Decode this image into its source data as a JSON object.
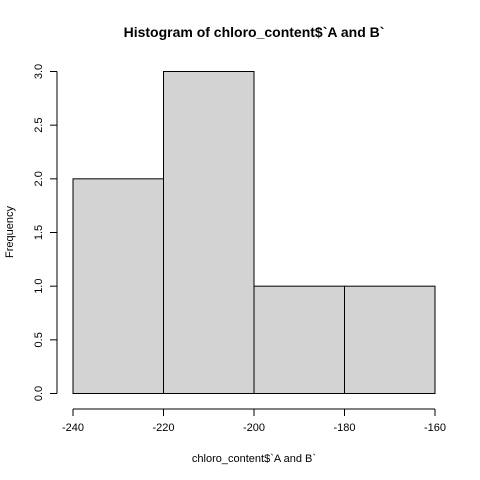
{
  "chart_data": {
    "type": "bar",
    "title": "Histogram of chloro_content$`A and B`",
    "xlabel": "chloro_content$`A and B`",
    "ylabel": "Frequency",
    "bins": [
      {
        "from": -240,
        "to": -220,
        "count": 2
      },
      {
        "from": -220,
        "to": -200,
        "count": 3
      },
      {
        "from": -200,
        "to": -180,
        "count": 1
      },
      {
        "from": -180,
        "to": -160,
        "count": 1
      }
    ],
    "x_ticks": [
      -240,
      -220,
      -200,
      -180,
      -160
    ],
    "y_ticks": [
      "0.0",
      "0.5",
      "1.0",
      "1.5",
      "2.0",
      "2.5",
      "3.0"
    ],
    "xlim": [
      -240,
      -160
    ],
    "ylim": [
      0,
      3
    ],
    "grid": false,
    "bar_fill": "#d3d3d3",
    "bar_stroke": "#000000"
  }
}
